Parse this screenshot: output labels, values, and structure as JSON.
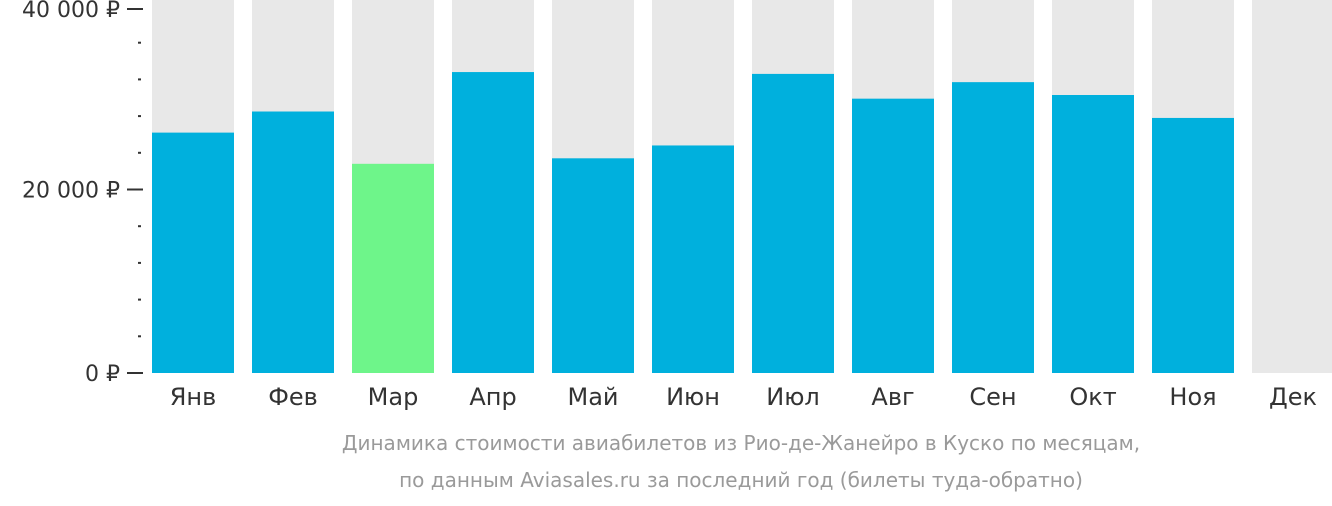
{
  "chart_data": {
    "type": "bar",
    "categories": [
      "Янв",
      "Фев",
      "Мар",
      "Апр",
      "Май",
      "Июн",
      "Июл",
      "Авг",
      "Сен",
      "Окт",
      "Ноя",
      "Дек"
    ],
    "values": [
      26200,
      28500,
      22800,
      32800,
      23400,
      24800,
      32600,
      29900,
      31700,
      30300,
      27800,
      null
    ],
    "highlight_index": 2,
    "ylim": [
      0,
      40000
    ],
    "y_ticks": [
      {
        "value": 0,
        "label": "0 ₽"
      },
      {
        "value": 20000,
        "label": "20 000 ₽"
      },
      {
        "value": 40000,
        "label": "40 000 ₽"
      }
    ],
    "y_minor_step": 4000,
    "colors": {
      "bar": "#00b0dd",
      "highlight": "#6ef58a",
      "background_bar": "#e8e8e8",
      "axis": "#333333"
    },
    "caption": [
      "Динамика стоимости авиабилетов из Рио-де-Жанейро в Куско по месяцам,",
      "по данным Aviasales.ru за последний год (билеты туда-обратно)"
    ]
  }
}
